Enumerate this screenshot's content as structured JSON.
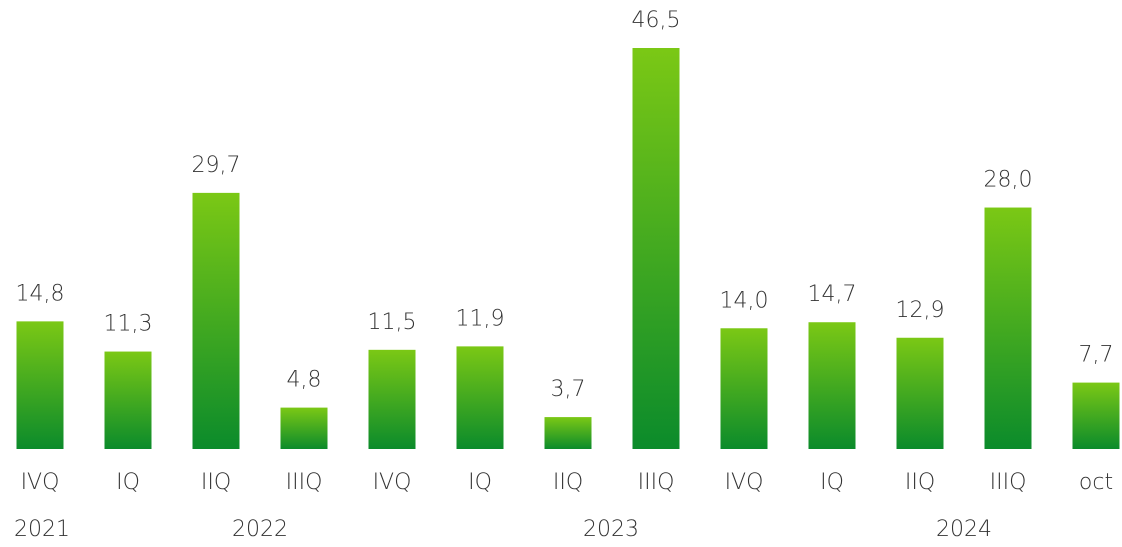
{
  "chart_data": {
    "type": "bar",
    "categories": [
      "IVQ",
      "IQ",
      "IIQ",
      "IIIQ",
      "IVQ",
      "IQ",
      "IIQ",
      "IIIQ",
      "IVQ",
      "IQ",
      "IIQ",
      "IIIQ",
      "oct"
    ],
    "values": [
      14.8,
      11.3,
      29.7,
      4.8,
      11.5,
      11.9,
      3.7,
      46.5,
      14.0,
      14.7,
      12.9,
      28.0,
      7.7
    ],
    "value_labels": [
      "14,8",
      "11,3",
      "29,7",
      "4,8",
      "11,5",
      "11,9",
      "3,7",
      "46,5",
      "14,0",
      "14,7",
      "12,9",
      "28,0",
      "7,7"
    ],
    "years": [
      "2021",
      "2022",
      "2023",
      "2024"
    ],
    "color": "#4cb31f",
    "ylim": [
      0,
      46.5
    ]
  }
}
